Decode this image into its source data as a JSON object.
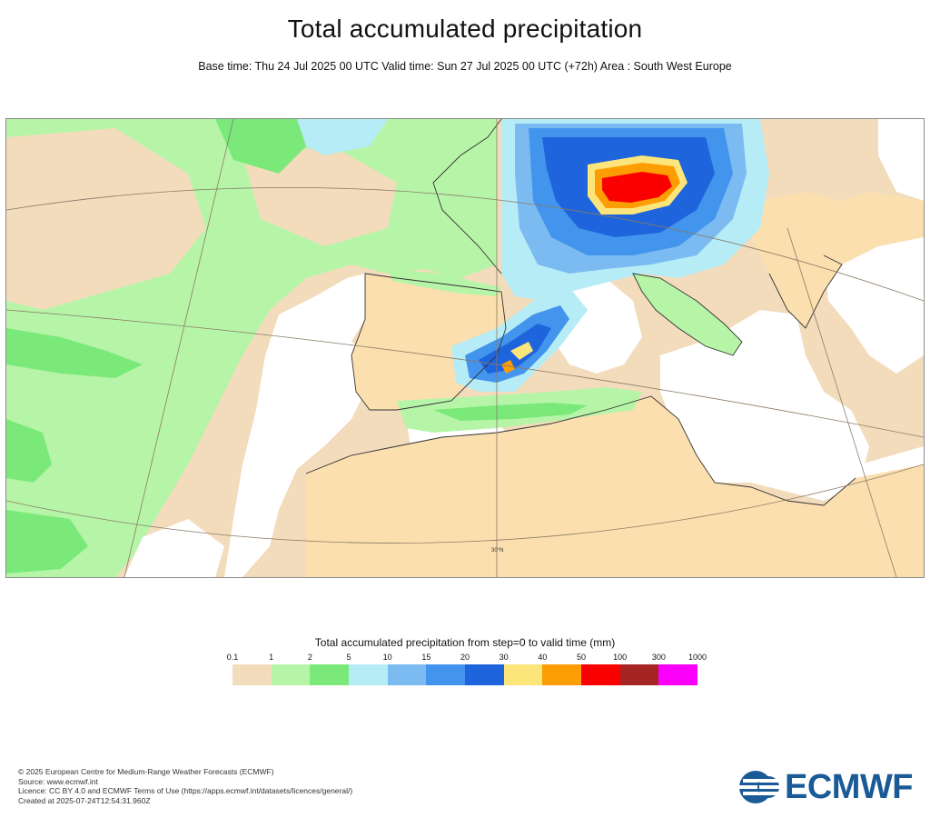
{
  "header": {
    "title": "Total accumulated precipitation",
    "subtitle": "Base time: Thu 24 Jul 2025 00 UTC Valid time: Sun 27 Jul 2025 00 UTC (+72h) Area : South West Europe"
  },
  "map": {
    "area": "South West Europe",
    "lat_label": "30°N",
    "colors": {
      "ocean": "#ffffff",
      "land_dry": "#fbdfaf",
      "frame": "#8a8a8a"
    }
  },
  "legend": {
    "title": "Total accumulated precipitation from step=0 to valid time (mm)",
    "ticks": [
      "0.1",
      "1",
      "2",
      "5",
      "10",
      "15",
      "20",
      "30",
      "40",
      "50",
      "100",
      "300",
      "1000"
    ],
    "colors": [
      "#f2dcbc",
      "#b6f5a8",
      "#7ae97a",
      "#b5ecf5",
      "#7bbbf2",
      "#4294ed",
      "#1e64dc",
      "#fce57a",
      "#fc9d04",
      "#fa0000",
      "#a52525",
      "#fa00fa"
    ]
  },
  "footer": {
    "line1": "© 2025 European Centre for Medium-Range Weather Forecasts (ECMWF)",
    "line2": "Source: www.ecmwf.int",
    "line3": "Licence: CC BY 4.0 and ECMWF Terms of Use (https://apps.ecmwf.int/datasets/licences/general/)",
    "line4": "Created at 2025-07-24T12:54:31.960Z"
  },
  "logo": {
    "text": "ECMWF",
    "color": "#1a5a96"
  }
}
